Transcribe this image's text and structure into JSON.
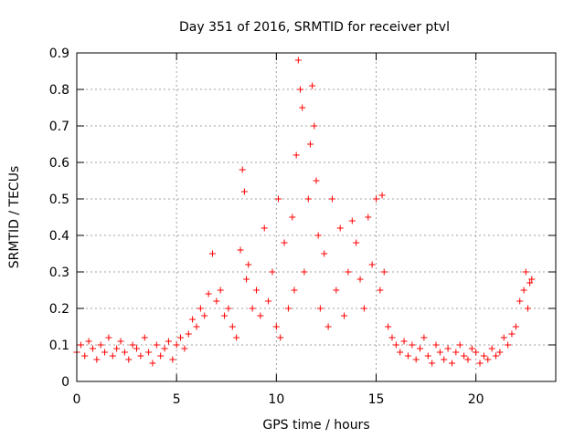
{
  "chart_data": {
    "type": "scatter",
    "title": "Day 351 of 2016, SRMTID for receiver ptvl",
    "xlabel": "GPS time / hours",
    "ylabel": "SRMTID / TECUs",
    "xlim": [
      0,
      24
    ],
    "ylim": [
      0,
      0.9
    ],
    "xticks": [
      0,
      5,
      10,
      15,
      20
    ],
    "xtick_labels": [
      "0",
      "5",
      "10",
      "15",
      "20"
    ],
    "yticks": [
      0,
      0.1,
      0.2,
      0.3,
      0.4,
      0.5,
      0.6,
      0.7,
      0.8,
      0.9
    ],
    "ytick_labels": [
      "0",
      "0.1",
      "0.2",
      "0.3",
      "0.4",
      "0.5",
      "0.6",
      "0.7",
      "0.8",
      "0.9"
    ],
    "grid": true,
    "marker": "plus",
    "series": [
      {
        "name": "SRMTID",
        "color": "#ff0000",
        "x": [
          0.0,
          0.2,
          0.4,
          0.6,
          0.8,
          1.0,
          1.2,
          1.4,
          1.6,
          1.8,
          2.0,
          2.2,
          2.4,
          2.6,
          2.8,
          3.0,
          3.2,
          3.4,
          3.6,
          3.8,
          4.0,
          4.2,
          4.4,
          4.6,
          4.8,
          5.0,
          5.2,
          5.4,
          5.6,
          5.8,
          6.0,
          6.2,
          6.4,
          6.6,
          6.8,
          7.0,
          7.2,
          7.4,
          7.6,
          7.8,
          8.0,
          8.2,
          8.3,
          8.4,
          8.5,
          8.6,
          8.8,
          9.0,
          9.2,
          9.4,
          9.6,
          9.8,
          10.0,
          10.1,
          10.2,
          10.4,
          10.6,
          10.8,
          10.9,
          11.0,
          11.1,
          11.2,
          11.3,
          11.4,
          11.6,
          11.7,
          11.8,
          11.9,
          12.0,
          12.1,
          12.2,
          12.4,
          12.6,
          12.8,
          13.0,
          13.2,
          13.4,
          13.6,
          13.8,
          14.0,
          14.2,
          14.4,
          14.6,
          14.8,
          15.0,
          15.2,
          15.3,
          15.4,
          15.6,
          15.8,
          16.0,
          16.2,
          16.4,
          16.6,
          16.8,
          17.0,
          17.2,
          17.4,
          17.6,
          17.8,
          18.0,
          18.2,
          18.4,
          18.6,
          18.8,
          19.0,
          19.2,
          19.4,
          19.6,
          19.8,
          20.0,
          20.2,
          20.4,
          20.6,
          20.8,
          21.0,
          21.2,
          21.4,
          21.6,
          21.8,
          22.0,
          22.2,
          22.4,
          22.5,
          22.6,
          22.7,
          22.8
        ],
        "y": [
          0.08,
          0.1,
          0.07,
          0.11,
          0.09,
          0.06,
          0.1,
          0.08,
          0.12,
          0.07,
          0.09,
          0.11,
          0.08,
          0.06,
          0.1,
          0.09,
          0.07,
          0.12,
          0.08,
          0.05,
          0.1,
          0.07,
          0.09,
          0.11,
          0.06,
          0.1,
          0.12,
          0.09,
          0.13,
          0.17,
          0.15,
          0.2,
          0.18,
          0.24,
          0.35,
          0.22,
          0.25,
          0.18,
          0.2,
          0.15,
          0.12,
          0.36,
          0.58,
          0.52,
          0.28,
          0.32,
          0.2,
          0.25,
          0.18,
          0.42,
          0.22,
          0.3,
          0.15,
          0.5,
          0.12,
          0.38,
          0.2,
          0.45,
          0.25,
          0.62,
          0.88,
          0.8,
          0.75,
          0.3,
          0.5,
          0.65,
          0.81,
          0.7,
          0.55,
          0.4,
          0.2,
          0.35,
          0.15,
          0.5,
          0.25,
          0.42,
          0.18,
          0.3,
          0.44,
          0.38,
          0.28,
          0.2,
          0.45,
          0.32,
          0.5,
          0.25,
          0.51,
          0.3,
          0.15,
          0.12,
          0.1,
          0.08,
          0.11,
          0.07,
          0.1,
          0.06,
          0.09,
          0.12,
          0.07,
          0.05,
          0.1,
          0.08,
          0.06,
          0.09,
          0.05,
          0.08,
          0.1,
          0.07,
          0.06,
          0.09,
          0.08,
          0.05,
          0.07,
          0.06,
          0.09,
          0.07,
          0.08,
          0.12,
          0.1,
          0.13,
          0.15,
          0.22,
          0.25,
          0.3,
          0.2,
          0.27,
          0.28
        ]
      }
    ]
  }
}
